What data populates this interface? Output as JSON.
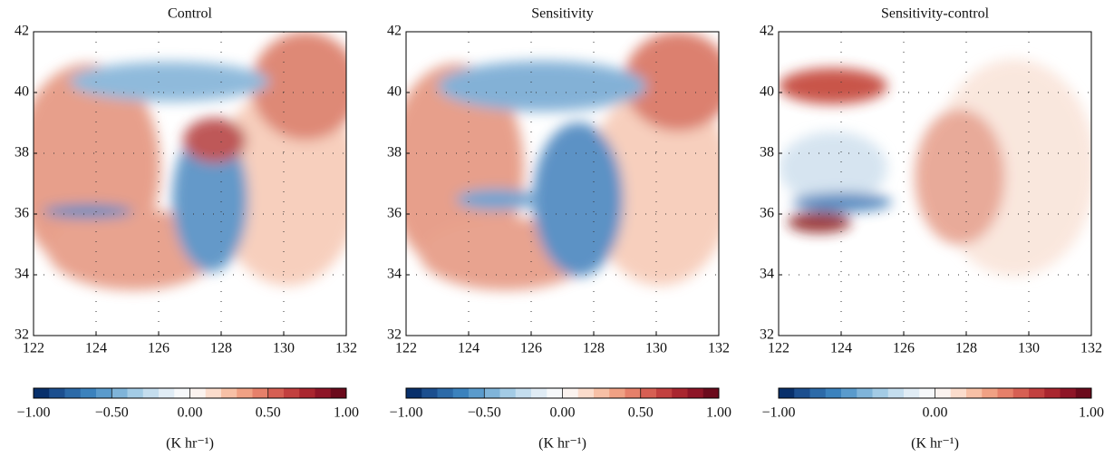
{
  "chart_data": [
    {
      "type": "heatmap",
      "title": "Control",
      "xlim": [
        122,
        132
      ],
      "ylim": [
        32,
        42
      ],
      "xticks": [
        122,
        124,
        126,
        128,
        130,
        132
      ],
      "yticks": [
        32,
        34,
        36,
        38,
        40,
        42
      ],
      "grid": true,
      "colorbar": {
        "label": "(K hr⁻¹)",
        "lim": [
          -1,
          1
        ],
        "ticks": [
          {
            "value": -1,
            "label": "−1.00"
          },
          {
            "value": -0.5,
            "label": "−0.50"
          },
          {
            "value": 0,
            "label": "0.00"
          },
          {
            "value": 0.5,
            "label": "0.50"
          },
          {
            "value": 1,
            "label": "1.00"
          }
        ],
        "colors": [
          "#08306b",
          "#1c4f8f",
          "#2c6aa8",
          "#3b82bd",
          "#5a9bcc",
          "#7fb4d9",
          "#a3cbe5",
          "#c4ddee",
          "#e0ecf5",
          "#f6f8fa",
          "#fbf3ef",
          "#fbdccc",
          "#f7c0a6",
          "#f0a184",
          "#e6806a",
          "#d65f53",
          "#c2403f",
          "#a9262f",
          "#8e1527",
          "#6b0a1c"
        ]
      }
    },
    {
      "type": "heatmap",
      "title": "Sensitivity",
      "xlim": [
        122,
        132
      ],
      "ylim": [
        32,
        42
      ],
      "xticks": [
        122,
        124,
        126,
        128,
        130,
        132
      ],
      "yticks": [
        32,
        34,
        36,
        38,
        40,
        42
      ],
      "grid": true,
      "colorbar": {
        "label": "(K hr⁻¹)",
        "lim": [
          -1,
          1
        ],
        "ticks": [
          {
            "value": -1,
            "label": "−1.00"
          },
          {
            "value": -0.5,
            "label": "−0.50"
          },
          {
            "value": 0,
            "label": "0.00"
          },
          {
            "value": 0.5,
            "label": "0.50"
          },
          {
            "value": 1,
            "label": "1.00"
          }
        ],
        "colors": [
          "#08306b",
          "#1c4f8f",
          "#2c6aa8",
          "#3b82bd",
          "#5a9bcc",
          "#7fb4d9",
          "#a3cbe5",
          "#c4ddee",
          "#e0ecf5",
          "#f6f8fa",
          "#fbf3ef",
          "#fbdccc",
          "#f7c0a6",
          "#f0a184",
          "#e6806a",
          "#d65f53",
          "#c2403f",
          "#a9262f",
          "#8e1527",
          "#6b0a1c"
        ]
      }
    },
    {
      "type": "heatmap",
      "title": "Sensitivity-control",
      "xlim": [
        122,
        132
      ],
      "ylim": [
        32,
        42
      ],
      "xticks": [
        122,
        124,
        126,
        128,
        130,
        132
      ],
      "yticks": [
        32,
        34,
        36,
        38,
        40,
        42
      ],
      "grid": true,
      "colorbar": {
        "label": "(K hr⁻¹)",
        "lim": [
          -1,
          1
        ],
        "ticks": [
          {
            "value": -1,
            "label": "−1.00"
          },
          {
            "value": 0,
            "label": "0.00"
          },
          {
            "value": 1,
            "label": "1.00"
          }
        ],
        "colors": [
          "#08306b",
          "#1c4f8f",
          "#2c6aa8",
          "#3b82bd",
          "#5a9bcc",
          "#7fb4d9",
          "#a3cbe5",
          "#c4ddee",
          "#e0ecf5",
          "#f6f8fa",
          "#fbf3ef",
          "#fbdccc",
          "#f7c0a6",
          "#f0a184",
          "#e6806a",
          "#d65f53",
          "#c2403f",
          "#a9262f",
          "#8e1527",
          "#6b0a1c"
        ]
      }
    }
  ]
}
